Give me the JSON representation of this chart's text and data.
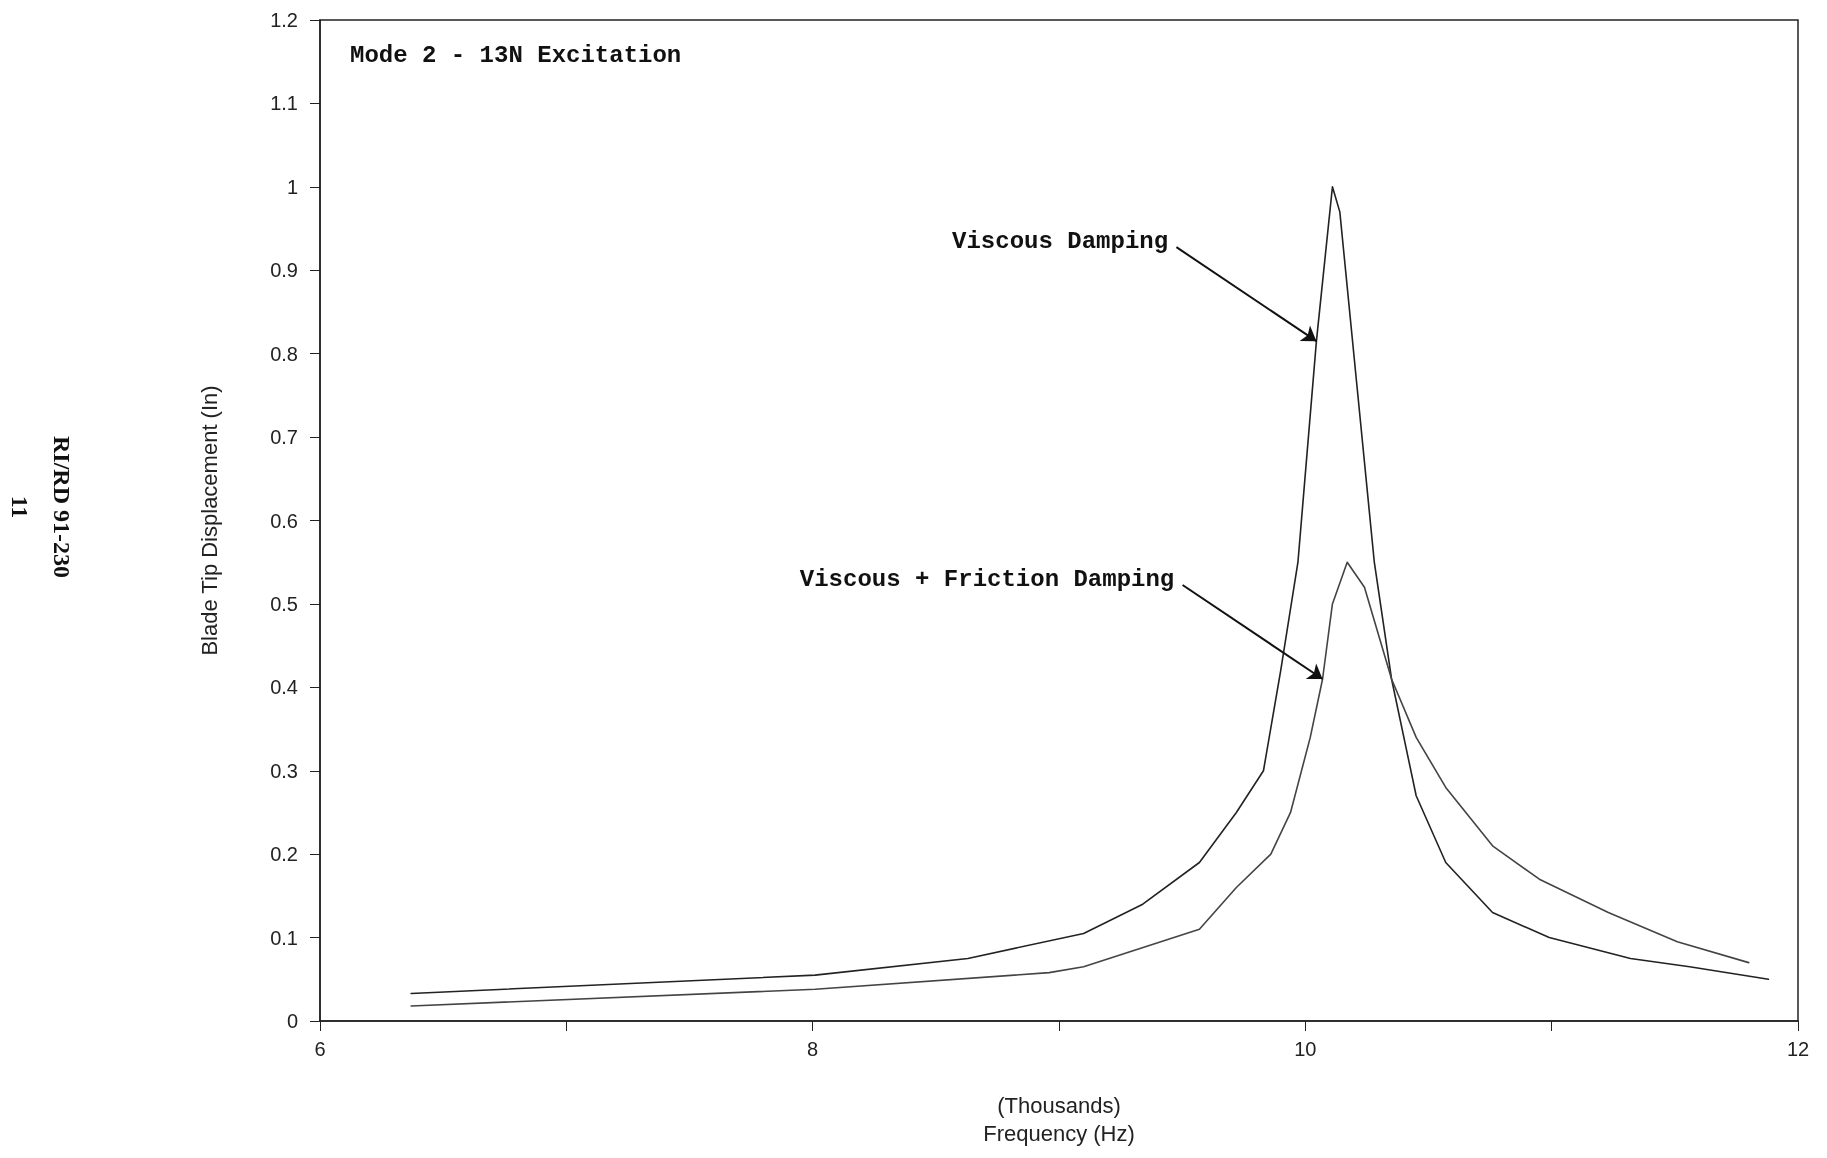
{
  "chart_data": {
    "type": "line",
    "title": "Mode 2 - 13N Excitation",
    "xlabel": "(Thousands)\nFrequency (Hz)",
    "ylabel": "Blade Tip Displacement (In)",
    "xlim": [
      6,
      12
    ],
    "xticks": [
      6,
      {
        "value": 7,
        "label": null
      },
      8,
      {
        "value": 9,
        "label": null
      },
      10,
      {
        "value": 11,
        "label": null
      },
      12
    ],
    "ylim": [
      0,
      1.2
    ],
    "yticks": [
      0,
      0.1,
      0.2,
      0.3,
      0.4,
      0.5,
      0.6,
      0.7,
      0.8,
      0.9,
      1,
      1.1,
      1.2
    ],
    "grid": false,
    "marker": "none",
    "line_style": "solid",
    "series": [
      {
        "color": "#222222",
        "x": [
          6.37,
          8.01,
          8.63,
          9.1,
          9.34,
          9.57,
          9.72,
          9.83,
          9.9,
          9.97,
          10.045,
          10.11,
          10.14,
          10.21,
          10.28,
          10.35,
          10.45,
          10.57,
          10.76,
          10.99,
          11.32,
          11.56,
          11.88
        ],
        "values": [
          0.033,
          0.055,
          0.075,
          0.105,
          0.14,
          0.19,
          0.25,
          0.3,
          0.42,
          0.55,
          0.815,
          1.0,
          0.97,
          0.76,
          0.55,
          0.41,
          0.27,
          0.19,
          0.13,
          0.1,
          0.075,
          0.065,
          0.05
        ]
      },
      {
        "color": "#444444",
        "x": [
          6.37,
          8.01,
          8.96,
          9.1,
          9.57,
          9.72,
          9.86,
          9.94,
          10.02,
          10.07,
          10.11,
          10.17,
          10.24,
          10.35,
          10.45,
          10.57,
          10.76,
          10.95,
          11.23,
          11.51,
          11.8
        ],
        "values": [
          0.018,
          0.038,
          0.058,
          0.065,
          0.11,
          0.16,
          0.2,
          0.25,
          0.34,
          0.41,
          0.5,
          0.55,
          0.52,
          0.41,
          0.34,
          0.28,
          0.21,
          0.17,
          0.13,
          0.095,
          0.07
        ]
      }
    ],
    "annotations": [
      {
        "text": "Viscous Damping",
        "x": 10.045,
        "y": 0.815
      },
      {
        "text": "Viscous + Friction Damping",
        "x": 10.07,
        "y": 0.41
      },
      "RI/RD 91-230",
      "11"
    ]
  }
}
